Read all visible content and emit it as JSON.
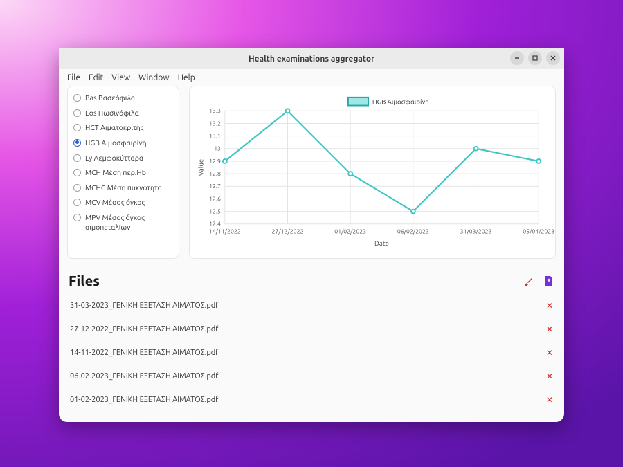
{
  "window": {
    "title": "Health examinations aggregator"
  },
  "menu": {
    "items": [
      "File",
      "Edit",
      "View",
      "Window",
      "Help"
    ]
  },
  "sidebar": {
    "items": [
      {
        "label": "Bas Βασεόφιλα",
        "checked": false
      },
      {
        "label": "Eos Ηωσινόφιλα",
        "checked": false
      },
      {
        "label": "HCT Αιματοκρίτης",
        "checked": false
      },
      {
        "label": "HGB Αιμοσφαιρίνη",
        "checked": true
      },
      {
        "label": "Ly Λεμφοκύτταρα",
        "checked": false
      },
      {
        "label": "MCH Μέση περ.Hb",
        "checked": false
      },
      {
        "label": "MCHC Μέση πυκνότητα",
        "checked": false
      },
      {
        "label": "MCV Μέσος όγκος",
        "checked": false
      },
      {
        "label": "MPV Μέσος όγκος αιμοπεταλίων",
        "checked": false
      }
    ]
  },
  "chart": {
    "type": "line",
    "legend_label": "HGB Αιμοσφαιρίνη",
    "ylabel": "Value",
    "xlabel": "Date",
    "x_categories": [
      "14/11/2022",
      "27/12/2022",
      "01/02/2023",
      "06/02/2023",
      "31/03/2023",
      "05/04/2023"
    ],
    "y_values": [
      12.9,
      13.3,
      12.8,
      12.5,
      13.0,
      12.9
    ],
    "ylim": [
      12.4,
      13.3
    ],
    "ytick_step": 0.1,
    "series_color": "#3ec6c6",
    "legend_box_fill": "#9ee8e8",
    "legend_box_stroke": "#2aa6a6",
    "point_radius": 3,
    "line_width": 2.2,
    "grid_color": "#e4e4e4",
    "background_color": "#ffffff",
    "axis_fontsize": 9,
    "label_fontsize": 10,
    "legend_fontsize": 10
  },
  "files": {
    "title": "Files",
    "items": [
      {
        "name": "31-03-2023_ΓΕΝΙΚΗ ΕΞΕΤΑΣΗ ΑΙΜΑΤΟΣ.pdf"
      },
      {
        "name": "27-12-2022_ΓΕΝΙΚΗ ΕΞΕΤΑΣΗ ΑΙΜΑΤΟΣ.pdf"
      },
      {
        "name": "14-11-2022_ΓΕΝΙΚΗ ΕΞΕΤΑΣΗ ΑΙΜΑΤΟΣ.pdf"
      },
      {
        "name": "06-02-2023_ΓΕΝΙΚΗ ΕΞΕΤΑΣΗ ΑΙΜΑΤΟΣ.pdf"
      },
      {
        "name": "01-02-2023_ΓΕΝΙΚΗ ΕΞΕΤΑΣΗ ΑΙΜΑΤΟΣ.pdf"
      }
    ]
  },
  "colors": {
    "brush_icon": "#c9302c",
    "add_file_icon": "#7a2ed6",
    "delete_icon": "#cc2b2b"
  }
}
